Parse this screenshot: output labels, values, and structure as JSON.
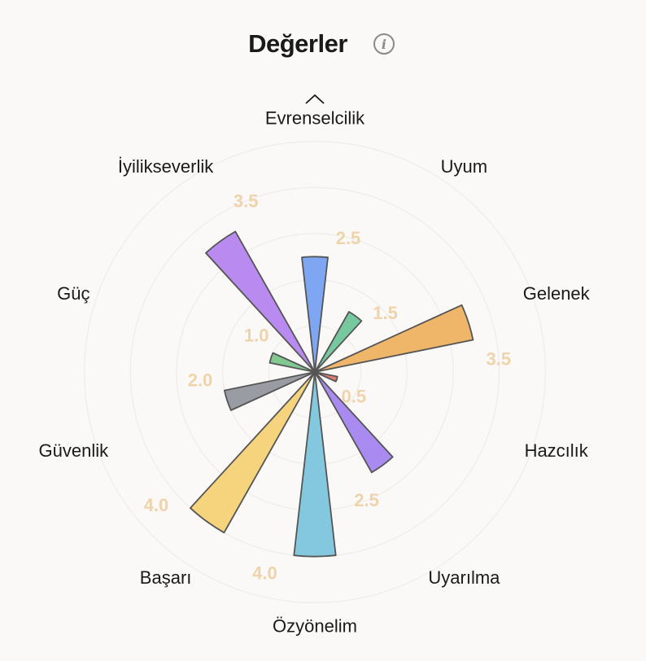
{
  "title": "Değerler",
  "info_icon": "info-icon",
  "chart_data": {
    "type": "polar-bar",
    "title": "Değerler",
    "rmax": 4.5,
    "grid": true,
    "categories": [
      "Evrenselcilik",
      "Uyum",
      "Gelenek",
      "Hazcılık",
      "Uyarılma",
      "Özyönelim",
      "Başarı",
      "Güvenlik",
      "Güç",
      "İyilikseverlik"
    ],
    "values": [
      2.5,
      1.5,
      3.5,
      0.5,
      2.5,
      4.0,
      4.0,
      2.0,
      1.0,
      3.5
    ],
    "value_labels": [
      "2.5",
      "1.5",
      "3.5",
      "0.5",
      "2.5",
      "4.0",
      "4.0",
      "2.0",
      "1.0",
      "3.5"
    ],
    "colors": [
      "#7fa6f2",
      "#77c89e",
      "#efb66a",
      "#e07a74",
      "#a98af0",
      "#84c8e0",
      "#f6d47e",
      "#9a9ca3",
      "#82c891",
      "#b98af0"
    ]
  }
}
